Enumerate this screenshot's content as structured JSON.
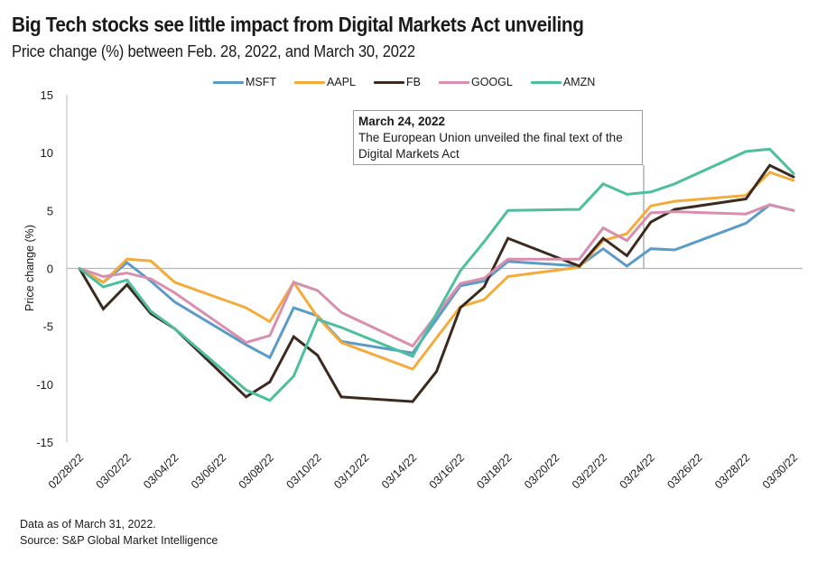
{
  "header": {
    "title": "Big Tech stocks see little impact from Digital Markets Act unveiling",
    "subtitle": "Price change (%) between Feb. 28, 2022, and March 30, 2022"
  },
  "footer": {
    "note": "Data as of March 31, 2022.",
    "source": "Source: S&P Global Market Intelligence"
  },
  "annotation": {
    "date_label": "March 24, 2022",
    "text": "The European Union unveiled the final text of the Digital Markets Act",
    "x_date": "03/24/22"
  },
  "chart_data": {
    "type": "line",
    "title": "Big Tech stocks see little impact from Digital Markets Act unveiling",
    "subtitle": "Price change (%) between Feb. 28, 2022, and March 30, 2022",
    "xlabel": "",
    "ylabel": "Price change (%)",
    "ylim": [
      -15,
      15
    ],
    "yticks": [
      15,
      10,
      5,
      0,
      -5,
      -10,
      -15
    ],
    "x_axis_type": "date",
    "x_range_days": [
      0,
      30
    ],
    "x_tick_labels": [
      "02/28/22",
      "03/02/22",
      "03/04/22",
      "03/06/22",
      "03/08/22",
      "03/10/22",
      "03/12/22",
      "03/14/22",
      "03/16/22",
      "03/18/22",
      "03/20/22",
      "03/22/22",
      "03/24/22",
      "03/26/22",
      "03/28/22",
      "03/30/22"
    ],
    "x_tick_days": [
      0,
      2,
      4,
      6,
      8,
      10,
      12,
      14,
      16,
      18,
      20,
      22,
      24,
      26,
      28,
      30
    ],
    "grid": false,
    "legend_position": "top-center",
    "x": [
      "02/28/22",
      "03/01/22",
      "03/02/22",
      "03/03/22",
      "03/04/22",
      "03/07/22",
      "03/08/22",
      "03/09/22",
      "03/10/22",
      "03/11/22",
      "03/14/22",
      "03/15/22",
      "03/16/22",
      "03/17/22",
      "03/18/22",
      "03/21/22",
      "03/22/22",
      "03/23/22",
      "03/24/22",
      "03/25/22",
      "03/28/22",
      "03/29/22",
      "03/30/22"
    ],
    "x_days": [
      0,
      1,
      2,
      3,
      4,
      7,
      8,
      9,
      10,
      11,
      14,
      15,
      16,
      17,
      18,
      21,
      22,
      23,
      24,
      25,
      28,
      29,
      30
    ],
    "series": [
      {
        "name": "MSFT",
        "color": "#5b9bc8",
        "values": [
          0,
          -1.2,
          0.5,
          -1.1,
          -2.9,
          -6.6,
          -7.7,
          -3.4,
          -4.1,
          -6.3,
          -7.3,
          -4.4,
          -1.5,
          -1.1,
          0.6,
          0.2,
          1.7,
          0.2,
          1.7,
          1.6,
          3.9,
          5.5,
          5.0
        ]
      },
      {
        "name": "AAPL",
        "color": "#f5ab3c",
        "values": [
          0,
          -1.2,
          0.8,
          0.65,
          -1.2,
          -3.4,
          -4.6,
          -1.2,
          -4.2,
          -6.4,
          -8.7,
          -6.0,
          -3.3,
          -2.7,
          -0.7,
          0.1,
          2.4,
          3.0,
          5.4,
          5.8,
          6.3,
          8.3,
          7.6
        ]
      },
      {
        "name": "FB",
        "color": "#3d2a1e",
        "values": [
          0,
          -3.5,
          -1.4,
          -3.9,
          -5.2,
          -11.1,
          -9.8,
          -5.9,
          -7.5,
          -11.1,
          -11.5,
          -8.9,
          -3.4,
          -1.6,
          2.6,
          0.2,
          2.6,
          1.1,
          4.0,
          5.1,
          6.0,
          8.9,
          7.9
        ]
      },
      {
        "name": "GOOGL",
        "color": "#d88fad",
        "values": [
          0,
          -0.7,
          -0.4,
          -0.9,
          -2.1,
          -6.4,
          -5.8,
          -1.2,
          -1.9,
          -3.8,
          -6.7,
          -4.0,
          -1.3,
          -0.85,
          0.8,
          0.8,
          3.5,
          2.4,
          4.8,
          4.9,
          4.7,
          5.5,
          5.0
        ]
      },
      {
        "name": "AMZN",
        "color": "#4dbf9e",
        "values": [
          0,
          -1.6,
          -1.0,
          -3.7,
          -5.2,
          -10.5,
          -11.4,
          -9.3,
          -4.4,
          -5.1,
          -7.6,
          -3.9,
          -0.2,
          2.3,
          5.0,
          5.1,
          7.3,
          6.4,
          6.6,
          7.3,
          10.1,
          10.3,
          8.2
        ]
      }
    ]
  }
}
